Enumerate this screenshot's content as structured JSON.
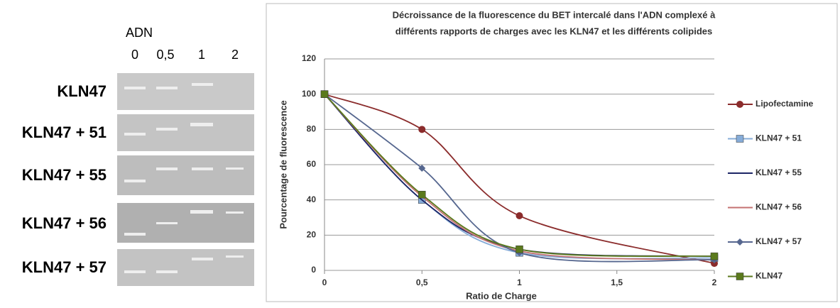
{
  "gel": {
    "column_title": "ADN",
    "columns": [
      "0",
      "0,5",
      "1",
      "2"
    ],
    "rows": [
      "KLN47",
      "KLN47 + 51",
      "KLN47 + 55",
      "KLN47 + 56",
      "KLN47 + 57"
    ]
  },
  "chart_data": {
    "type": "line",
    "title": [
      "Décroissance de la fluorescence du BET intercalé dans l'ADN complexé à",
      "différents rapports  de charges avec les KLN47 et les différents colipides"
    ],
    "x_label": "Ratio de Charge",
    "y_label": "Pourcentage  de fluorescence",
    "x": [
      0,
      0.5,
      1,
      2
    ],
    "xlim": [
      0,
      2
    ],
    "xticks": [
      0,
      {
        "value": 0.5,
        "label": "0,5"
      },
      1,
      {
        "value": 1.5,
        "label": "1,5"
      },
      2
    ],
    "ylim": [
      0,
      120
    ],
    "yticks": [
      0,
      20,
      40,
      60,
      80,
      100,
      120
    ],
    "grid": true,
    "smooth": true,
    "series": [
      {
        "name": "Lipofectamine",
        "color": "#8b2c2c",
        "marker": "circle",
        "values": [
          100,
          80,
          31,
          4
        ]
      },
      {
        "name": "KLN47 + 51",
        "color": "#86acd8",
        "marker": "square",
        "values": [
          100,
          40,
          10,
          7
        ]
      },
      {
        "name": "KLN47 + 55",
        "color": "#1c2566",
        "marker": "none",
        "values": [
          100,
          40,
          12,
          8
        ]
      },
      {
        "name": "KLN47 + 56",
        "color": "#c47272",
        "marker": "none",
        "values": [
          100,
          42,
          11,
          6
        ]
      },
      {
        "name": "KLN47 + 57",
        "color": "#56678f",
        "marker": "diamond",
        "values": [
          100,
          58,
          10,
          6
        ]
      },
      {
        "name": "KLN47",
        "color": "#5b7a1c",
        "marker": "square",
        "values": [
          100,
          43,
          12,
          8
        ]
      }
    ]
  }
}
